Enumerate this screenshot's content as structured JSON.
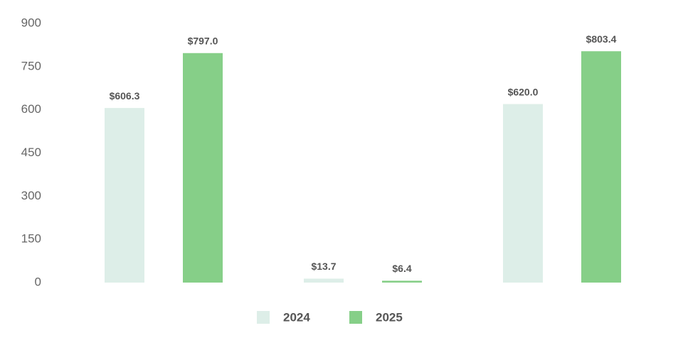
{
  "chart_data": {
    "type": "bar",
    "categories": [
      null,
      null,
      null
    ],
    "series": [
      {
        "name": "2024",
        "color": "#ddeee8",
        "values": [
          606.3,
          13.7,
          620.0
        ],
        "value_labels": [
          "$606.3",
          "$13.7",
          "$620.0"
        ]
      },
      {
        "name": "2025",
        "color": "#86cf88",
        "values": [
          797.0,
          6.4,
          803.4
        ],
        "value_labels": [
          "$797.0",
          "$6.4",
          "$803.4"
        ]
      }
    ],
    "ylim": [
      0,
      900
    ],
    "yticks": [
      0,
      150,
      300,
      450,
      600,
      750,
      900
    ],
    "grid": false,
    "legend": "bottom"
  }
}
